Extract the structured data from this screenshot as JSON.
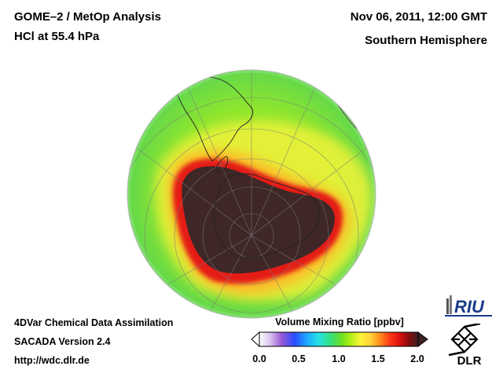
{
  "header": {
    "title": "GOME–2 / MetOp Analysis",
    "species": "HCl at 55.4 hPa",
    "datetime": "Nov 06, 2011, 12:00 GMT",
    "region": "Southern Hemisphere"
  },
  "footer": {
    "method": "4DVar Chemical Data Assimilation",
    "version": "SACADA Version 2.4",
    "url": "http://wdc.dlr.de"
  },
  "colorbar": {
    "title": "Volume Mixing Ratio [ppbv]",
    "ticks": [
      "0.0",
      "0.5",
      "1.0",
      "1.5",
      "2.0"
    ],
    "range": [
      0.0,
      2.0
    ],
    "colors": [
      "#ffffff",
      "#d8c0ec",
      "#9b59d6",
      "#2a4bff",
      "#1fa8ff",
      "#25e0e8",
      "#36e07a",
      "#6fe020",
      "#b8f018",
      "#fff23a",
      "#ffd23a",
      "#ff8c1a",
      "#ff3b1a",
      "#e01010",
      "#8a0c0c",
      "#3c2222"
    ]
  },
  "map": {
    "projection": "orthographic",
    "center": "South Pole",
    "hcl_polar_core_ppbv": 2.0,
    "ocean_background_color": "#7fe03a",
    "core_color": "#3f2727"
  },
  "logos": {
    "riu": "RIU",
    "dlr": "DLR"
  }
}
